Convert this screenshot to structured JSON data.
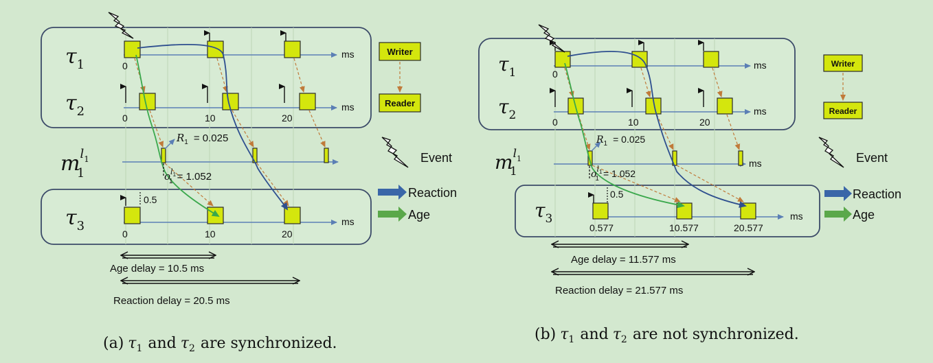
{
  "colors": {
    "background": "#d3e8cf",
    "box_fill": "#d7ebd4",
    "box_stroke": "#3b4a68",
    "task_fill": "#d4e60d",
    "task_stroke": "#2a2a2a",
    "axis": "#5b7fb5",
    "reaction": "#2e4f8f",
    "age": "#3aa84c",
    "dashed": "#c07a3a"
  },
  "legend": {
    "writer": "Writer",
    "reader": "Reader",
    "event": "Event",
    "reaction": "Reaction",
    "age": "Age"
  },
  "panel_a": {
    "tau1": "τ",
    "tau1_sub": "1",
    "tau2": "τ",
    "tau2_sub": "2",
    "tau3": "τ",
    "tau3_sub": "3",
    "m_label": "m",
    "m_sub": "1",
    "m_sup": "l",
    "m_sup_sub": "1",
    "unit": "ms",
    "t1_ticks": [
      "0"
    ],
    "t2_ticks": [
      "0",
      "10",
      "20"
    ],
    "t3_ticks": [
      "0",
      "10",
      "20"
    ],
    "r1_symbol": "R",
    "r1_sub": "1",
    "r1_value": "= 0.025",
    "o_symbol": "o",
    "o_sub": "1",
    "o_sup": "l",
    "o_sup_sub": "1",
    "o_value": "= 1.052",
    "offset_label": "0.5",
    "age_delay": "Age delay = 10.5 ms",
    "reaction_delay": "Reaction delay = 20.5 ms",
    "caption_prefix": "(a)",
    "caption_t1": "τ",
    "caption_t1_sub": "1",
    "caption_and": "and",
    "caption_t2": "τ",
    "caption_t2_sub": "2",
    "caption_rest": "are synchronized."
  },
  "panel_b": {
    "tau1": "τ",
    "tau1_sub": "1",
    "tau2": "τ",
    "tau2_sub": "2",
    "tau3": "τ",
    "tau3_sub": "3",
    "m_label": "m",
    "m_sub": "1",
    "m_sup": "l",
    "m_sup_sub": "1",
    "unit": "ms",
    "t1_ticks": [
      "0"
    ],
    "t2_ticks": [
      "0",
      "10",
      "20"
    ],
    "t3_ticks": [
      "0.577",
      "10.577",
      "20.577"
    ],
    "r1_symbol": "R",
    "r1_sub": "1",
    "r1_value": "= 0.025",
    "o_symbol": "o",
    "o_sub": "1",
    "o_sup": "l",
    "o_sup_sub": "1",
    "o_value": "= 1.052",
    "offset_label": "0.5",
    "age_delay": "Age delay = 11.577 ms",
    "reaction_delay": "Reaction delay = 21.577 ms",
    "caption_prefix": "(b)",
    "caption_t1": "τ",
    "caption_t1_sub": "1",
    "caption_and": "and",
    "caption_t2": "τ",
    "caption_t2_sub": "2",
    "caption_rest": "are not synchronized."
  }
}
